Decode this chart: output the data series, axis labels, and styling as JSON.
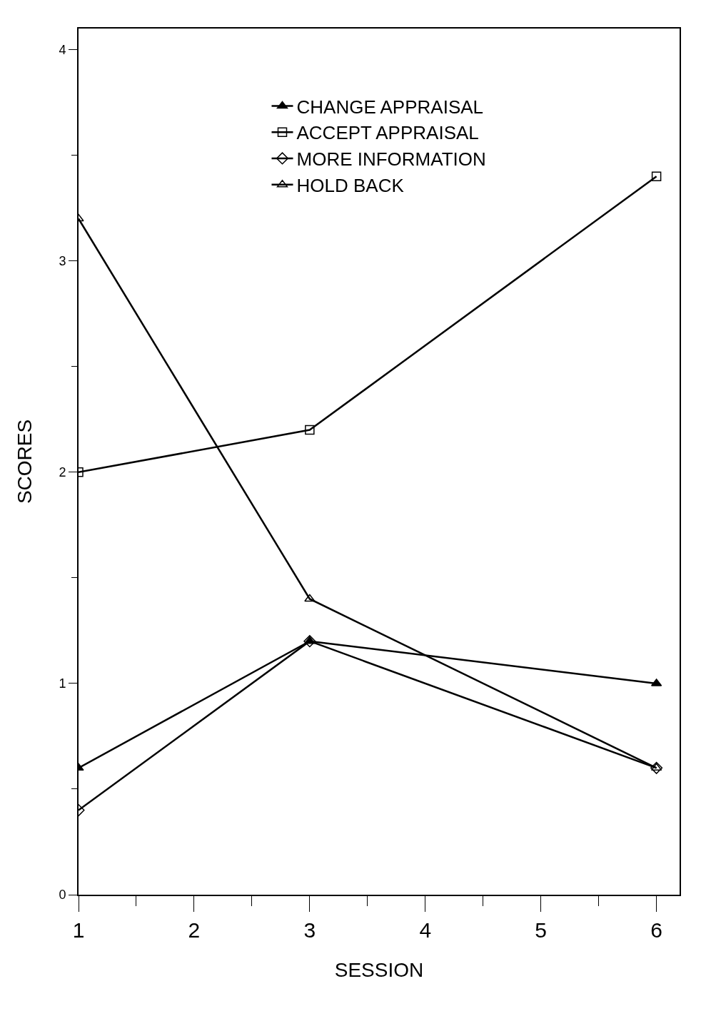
{
  "chart_data": {
    "type": "line",
    "xlabel": "SESSION",
    "ylabel": "SCORES",
    "xlim": [
      1,
      6.2
    ],
    "ylim": [
      0,
      4.1
    ],
    "xticks": [
      1,
      {
        "value": 1.5,
        "label": null
      },
      2,
      {
        "value": 2.5,
        "label": null
      },
      3,
      {
        "value": 3.5,
        "label": null
      },
      4,
      {
        "value": 4.5,
        "label": null
      },
      5,
      {
        "value": 5.5,
        "label": null
      },
      6
    ],
    "yticks": [
      0,
      {
        "value": 0.5,
        "label": null
      },
      1,
      {
        "value": 1.5,
        "label": null
      },
      2,
      {
        "value": 2.5,
        "label": null
      },
      3,
      {
        "value": 3.5,
        "label": null
      },
      4
    ],
    "grid": false,
    "legend": "top",
    "line_style": "solid",
    "series": [
      {
        "name": "CHANGE APPRAISAL",
        "color": "#000000",
        "marker": "triangle",
        "x": [
          1,
          3,
          6
        ],
        "values": [
          0.6,
          1.2,
          1.0
        ]
      },
      {
        "name": "ACCEPT APPRAISAL",
        "color": "#000000",
        "marker": "square",
        "x": [
          1,
          3,
          6
        ],
        "values": [
          2.0,
          2.2,
          3.4
        ]
      },
      {
        "name": "MORE INFORMATION",
        "color": "#000000",
        "marker": "diamond",
        "x": [
          1,
          3,
          6
        ],
        "values": [
          0.4,
          1.2,
          0.6
        ]
      },
      {
        "name": "HOLD BACK",
        "color": "#000000",
        "marker": "triangle-open",
        "x": [
          1,
          3,
          6
        ],
        "values": [
          3.2,
          1.4,
          0.6
        ]
      }
    ]
  }
}
